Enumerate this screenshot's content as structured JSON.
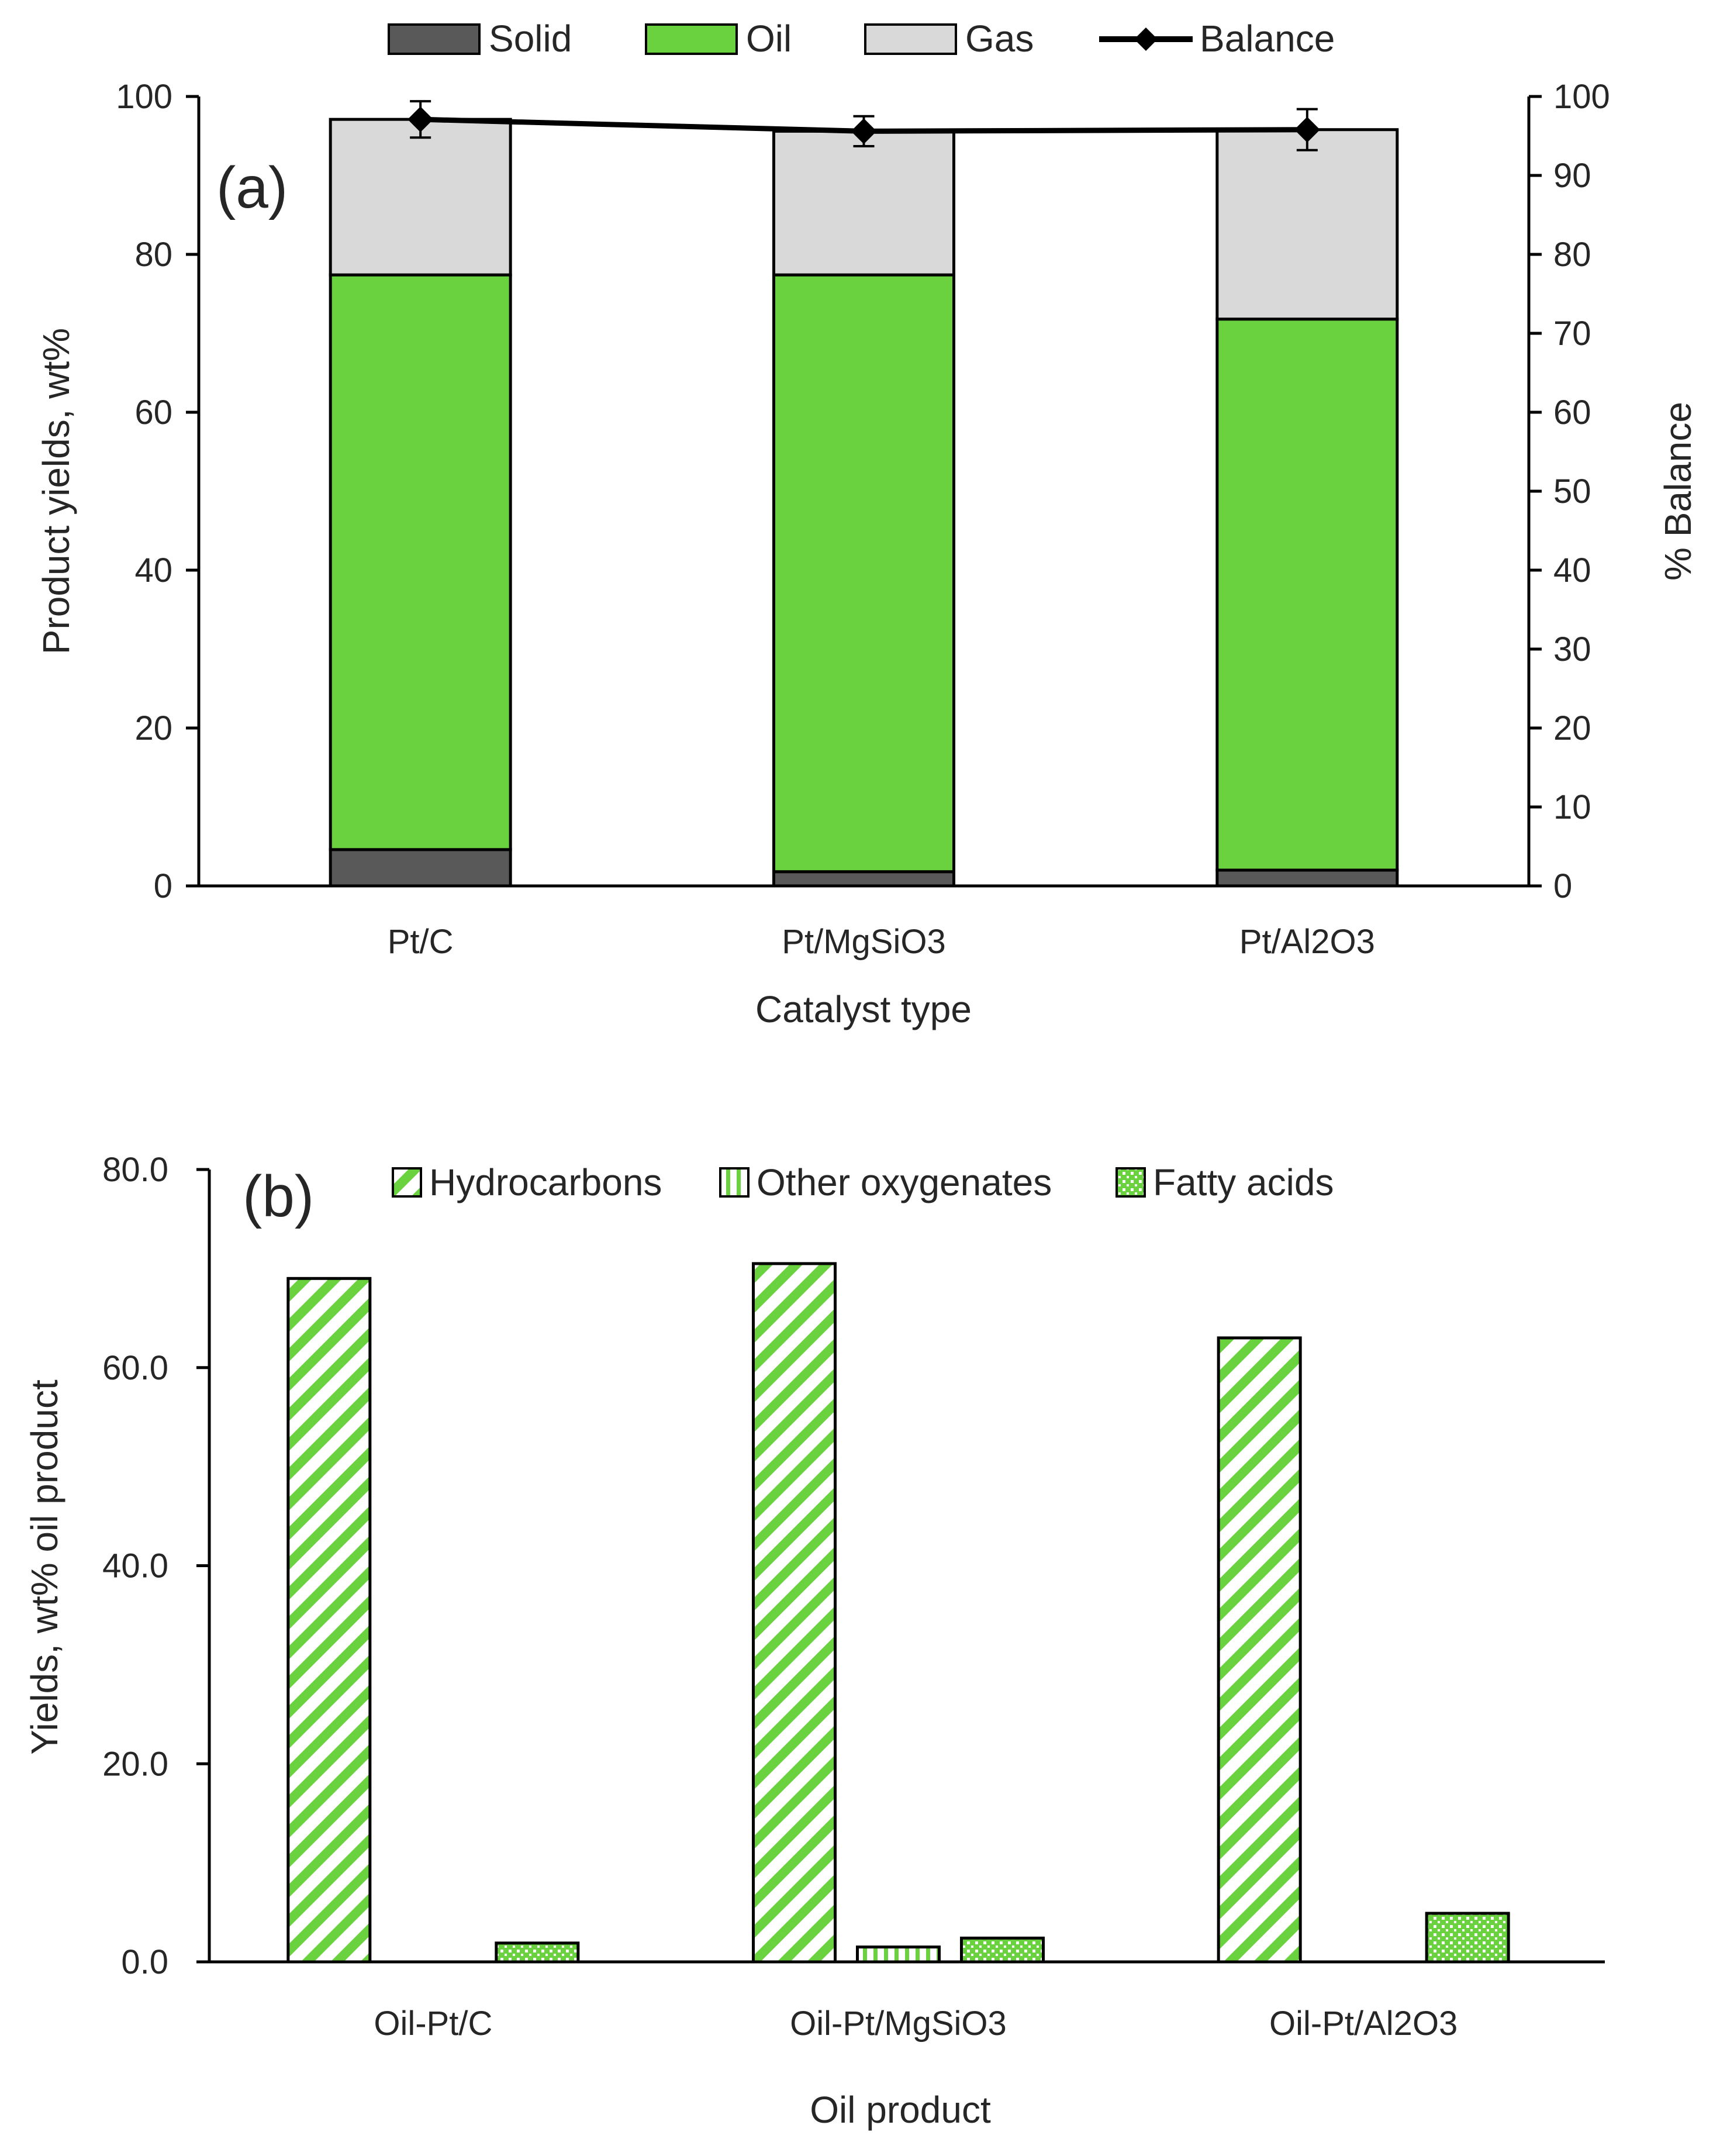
{
  "chart_data": [
    {
      "type": "bar",
      "subtype": "stacked-bar-with-line",
      "panel_label": "(a)",
      "categories": [
        "Pt/C",
        "Pt/MgSiO3",
        "Pt/Al2O3"
      ],
      "series": [
        {
          "name": "Solid",
          "values": [
            4.6,
            1.8,
            2.0
          ],
          "color": "#595959"
        },
        {
          "name": "Oil",
          "values": [
            72.8,
            75.6,
            69.8
          ],
          "color": "#6ad23f"
        },
        {
          "name": "Gas",
          "values": [
            19.7,
            18.2,
            24.0
          ],
          "color": "#d9d9d9"
        }
      ],
      "line_series": {
        "name": "Balance",
        "axis": "right",
        "values": [
          97.1,
          95.6,
          95.8
        ],
        "error": [
          2.3,
          1.9,
          2.6
        ],
        "color": "#000000",
        "marker": "diamond"
      },
      "xlabel": "Catalyst type",
      "ylabel": "Product yields, wt%",
      "y2label": "% Balance",
      "ylim": [
        0,
        100
      ],
      "y2lim": [
        0,
        100
      ],
      "yticks": [
        "0",
        "20",
        "40",
        "60",
        "80",
        "100"
      ],
      "y2ticks": [
        "0",
        "10",
        "20",
        "30",
        "40",
        "50",
        "60",
        "70",
        "80",
        "90",
        "100"
      ],
      "legend": "top",
      "grid": false
    },
    {
      "type": "bar",
      "subtype": "grouped-bar",
      "panel_label": "(b)",
      "categories": [
        "Oil-Pt/C",
        "Oil-Pt/MgSiO3",
        "Oil-Pt/Al2O3"
      ],
      "series": [
        {
          "name": "Hydrocarbons",
          "values": [
            69.0,
            70.5,
            63.0
          ],
          "pattern": "diagonal-stripes"
        },
        {
          "name": "Other oxygenates",
          "values": [
            0.0,
            1.5,
            0.0
          ],
          "pattern": "vertical-stripes"
        },
        {
          "name": "Fatty acids",
          "values": [
            1.9,
            2.4,
            4.9
          ],
          "pattern": "dotted-grid"
        }
      ],
      "pattern_color": "#6ad23f",
      "xlabel": "Oil product",
      "ylabel": "Yields, wt% oil product",
      "ylim": [
        0,
        80
      ],
      "yticks": [
        "0.0",
        "20.0",
        "40.0",
        "60.0",
        "80.0"
      ],
      "legend": "top",
      "grid": false
    }
  ]
}
